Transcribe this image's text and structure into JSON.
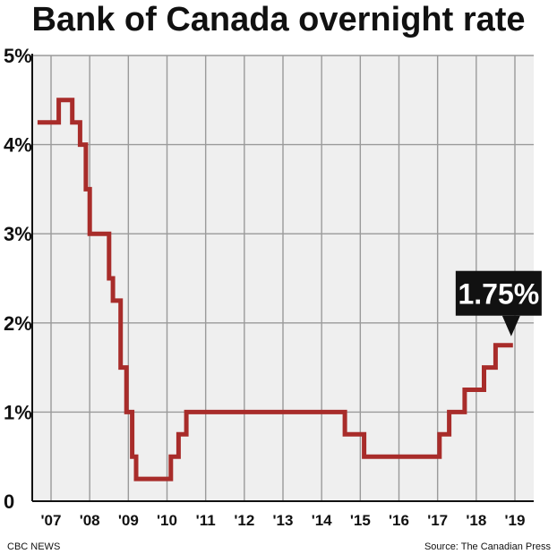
{
  "chart_data": {
    "type": "line",
    "title": "Bank of Canada overnight rate",
    "xlabel": "",
    "ylabel": "",
    "x_tick_labels": [
      "'07",
      "'08",
      "'09",
      "'10",
      "'11",
      "'12",
      "'13",
      "'14",
      "'15",
      "'16",
      "'17",
      "'18",
      "'19"
    ],
    "y_tick_labels": [
      "0",
      "1%",
      "2%",
      "3%",
      "4%",
      "5%"
    ],
    "xlim": [
      2007,
      2019
    ],
    "ylim": [
      0,
      5
    ],
    "grid": true,
    "step": true,
    "series": [
      {
        "color": "#a82c2a",
        "x": [
          2006.65,
          2007.2,
          2007.2,
          2007.55,
          2007.55,
          2007.75,
          2007.75,
          2007.9,
          2007.9,
          2008.0,
          2008.0,
          2008.5,
          2008.5,
          2008.6,
          2008.6,
          2008.8,
          2008.8,
          2008.95,
          2008.95,
          2009.1,
          2009.1,
          2009.2,
          2009.2,
          2010.1,
          2010.1,
          2010.3,
          2010.3,
          2010.5,
          2010.5,
          2014.6,
          2014.6,
          2015.1,
          2015.1,
          2017.05,
          2017.05,
          2017.3,
          2017.3,
          2017.7,
          2017.7,
          2018.2,
          2018.2,
          2018.5,
          2018.5,
          2018.95
        ],
        "values": [
          4.25,
          4.25,
          4.5,
          4.5,
          4.25,
          4.25,
          4.0,
          4.0,
          3.5,
          3.5,
          3.0,
          3.0,
          2.5,
          2.5,
          2.25,
          2.25,
          1.5,
          1.5,
          1.0,
          1.0,
          0.5,
          0.5,
          0.25,
          0.25,
          0.5,
          0.5,
          0.75,
          0.75,
          1.0,
          1.0,
          0.75,
          0.75,
          0.5,
          0.5,
          0.75,
          0.75,
          1.0,
          1.0,
          1.25,
          1.25,
          1.5,
          1.5,
          1.75,
          1.75
        ]
      }
    ],
    "annotation": {
      "text": "1.75%",
      "x": 2018.95,
      "value": 1.75,
      "background": "#111111",
      "text_color": "#ffffff"
    }
  },
  "colors": {
    "plot_background": "#efefef",
    "gridline": "#9a9a9a",
    "line": "#a82c2a",
    "axis": "#111111"
  },
  "footer": {
    "left": "CBC NEWS",
    "right": "Source: The Canadian Press"
  }
}
